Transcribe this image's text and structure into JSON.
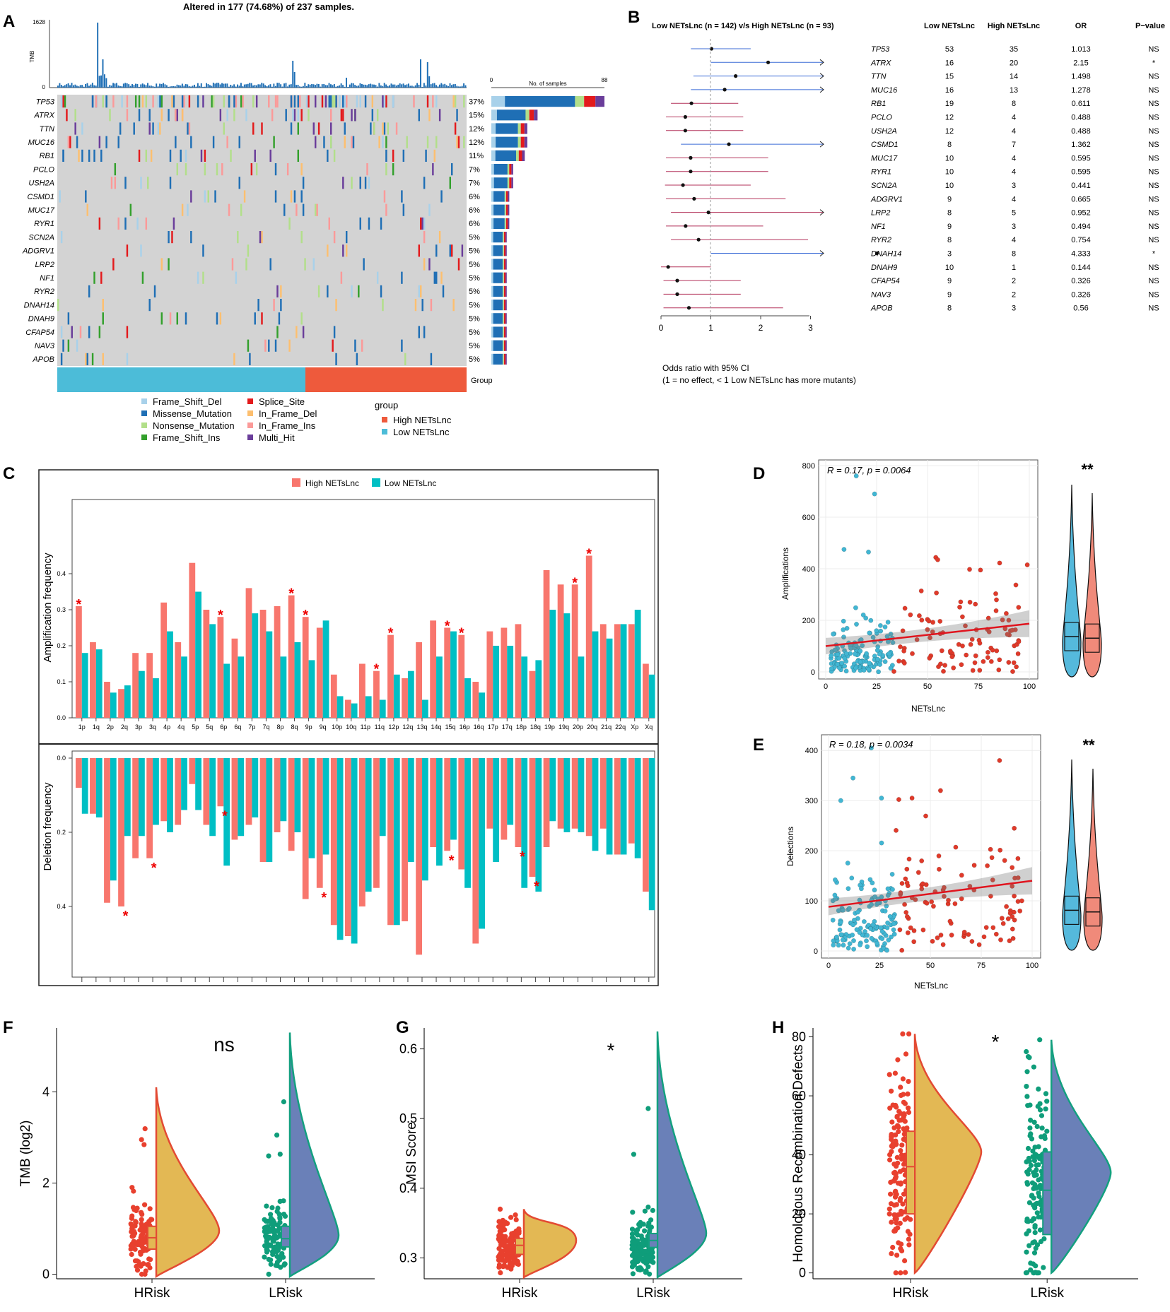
{
  "panel_letters": [
    "A",
    "B",
    "C",
    "D",
    "E",
    "F",
    "G",
    "H"
  ],
  "colors": {
    "high": "#ee5a4f",
    "low": "#2bbcc9",
    "high_bar": "#f8766d",
    "low_bar": "#00bfc4",
    "hrisk_dot": "#e8402e",
    "lrisk_dot": "#0f9d7a",
    "hrisk_fill": "#e3b854",
    "lrisk_fill": "#6a80b8",
    "missense": "#1f6fb5",
    "frame_shift_del": "#a8d1ea",
    "nonsense": "#b2df8a",
    "frame_shift_ins": "#33a02c",
    "splice": "#e31a1c",
    "in_frame_del": "#fdbf6f",
    "in_frame_ins": "#fb9a99",
    "multi_hit": "#6a3d9a",
    "grey": "#d3d3d3"
  },
  "panelA": {
    "title": "Altered in 177 (74.68%) of 237 samples.",
    "tmb_label": "TMB",
    "tmb_max": "1628",
    "tmb_min": "0",
    "samples_axis": {
      "label": "No. of samples",
      "min": "0",
      "max": "88"
    },
    "group_label": "Group",
    "genes": [
      "TP53",
      "ATRX",
      "TTN",
      "MUC16",
      "RB1",
      "PCLO",
      "USH2A",
      "CSMD1",
      "MUC17",
      "RYR1",
      "SCN2A",
      "ADGRV1",
      "LRP2",
      "NF1",
      "RYR2",
      "DNAH14",
      "DNAH9",
      "CFAP54",
      "NAV3",
      "APOB"
    ],
    "percents": [
      "37%",
      "15%",
      "12%",
      "12%",
      "11%",
      "7%",
      "7%",
      "6%",
      "6%",
      "6%",
      "5%",
      "5%",
      "5%",
      "5%",
      "5%",
      "5%",
      "5%",
      "5%",
      "5%",
      "5%"
    ],
    "counts": [
      88,
      36,
      28,
      28,
      26,
      17,
      17,
      14,
      14,
      14,
      12,
      12,
      12,
      12,
      12,
      12,
      12,
      12,
      12,
      12
    ],
    "legend": [
      "Frame_Shift_Del",
      "Missense_Mutation",
      "Nonsense_Mutation",
      "Frame_Shift_Ins",
      "Splice_Site",
      "In_Frame_Del",
      "In_Frame_Ins",
      "Multi_Hit"
    ],
    "group_legend_title": "group",
    "group_legend": [
      "High NETsLnc",
      "Low NETsLnc"
    ]
  },
  "panelB": {
    "title": "Low NETsLnc (n = 142) v/s High NETsLnc (n = 93)",
    "headers": [
      "Low NETsLnc",
      "High NETsLnc",
      "OR",
      "P−value"
    ],
    "rows": [
      {
        "gene": "TP53",
        "low": "53",
        "high": "35",
        "or": "1.013",
        "p": "NS"
      },
      {
        "gene": "ATRX",
        "low": "16",
        "high": "20",
        "or": "2.15",
        "p": "*"
      },
      {
        "gene": "TTN",
        "low": "15",
        "high": "14",
        "or": "1.498",
        "p": "NS"
      },
      {
        "gene": "MUC16",
        "low": "16",
        "high": "13",
        "or": "1.278",
        "p": "NS"
      },
      {
        "gene": "RB1",
        "low": "19",
        "high": "8",
        "or": "0.611",
        "p": "NS"
      },
      {
        "gene": "PCLO",
        "low": "12",
        "high": "4",
        "or": "0.488",
        "p": "NS"
      },
      {
        "gene": "USH2A",
        "low": "12",
        "high": "4",
        "or": "0.488",
        "p": "NS"
      },
      {
        "gene": "CSMD1",
        "low": "8",
        "high": "7",
        "or": "1.362",
        "p": "NS"
      },
      {
        "gene": "MUC17",
        "low": "10",
        "high": "4",
        "or": "0.595",
        "p": "NS"
      },
      {
        "gene": "RYR1",
        "low": "10",
        "high": "4",
        "or": "0.595",
        "p": "NS"
      },
      {
        "gene": "SCN2A",
        "low": "10",
        "high": "3",
        "or": "0.441",
        "p": "NS"
      },
      {
        "gene": "ADGRV1",
        "low": "9",
        "high": "4",
        "or": "0.665",
        "p": "NS"
      },
      {
        "gene": "LRP2",
        "low": "8",
        "high": "5",
        "or": "0.952",
        "p": "NS"
      },
      {
        "gene": "NF1",
        "low": "9",
        "high": "3",
        "or": "0.494",
        "p": "NS"
      },
      {
        "gene": "RYR2",
        "low": "8",
        "high": "4",
        "or": "0.754",
        "p": "NS"
      },
      {
        "gene": "DNAH14",
        "low": "3",
        "high": "8",
        "or": "4.333",
        "p": "*"
      },
      {
        "gene": "DNAH9",
        "low": "10",
        "high": "1",
        "or": "0.144",
        "p": "NS"
      },
      {
        "gene": "CFAP54",
        "low": "9",
        "high": "2",
        "or": "0.326",
        "p": "NS"
      },
      {
        "gene": "NAV3",
        "low": "9",
        "high": "2",
        "or": "0.326",
        "p": "NS"
      },
      {
        "gene": "APOB",
        "low": "8",
        "high": "3",
        "or": "0.56",
        "p": "NS"
      }
    ],
    "ci": [
      [
        0.6,
        1.8
      ],
      [
        1.0,
        3.3
      ],
      [
        0.65,
        3.3
      ],
      [
        0.6,
        3.3
      ],
      [
        0.2,
        1.55
      ],
      [
        0.1,
        1.65
      ],
      [
        0.1,
        1.65
      ],
      [
        0.4,
        3.3
      ],
      [
        0.1,
        2.15
      ],
      [
        0.1,
        2.15
      ],
      [
        0.08,
        1.8
      ],
      [
        0.1,
        2.5
      ],
      [
        0.2,
        3.3
      ],
      [
        0.1,
        2.05
      ],
      [
        0.2,
        2.95
      ],
      [
        1.0,
        3.3
      ],
      [
        0.0,
        1.0
      ],
      [
        0.05,
        1.6
      ],
      [
        0.05,
        1.6
      ],
      [
        0.05,
        2.45
      ]
    ],
    "xticks": [
      "0",
      "1",
      "2",
      "3"
    ],
    "footnote1": "Odds ratio with 95% CI",
    "footnote2": "(1 = no effect, < 1 Low NETsLnc has more mutants)"
  },
  "chart_data": [
    {
      "id": "C",
      "type": "bar",
      "legend": [
        "High NETsLnc",
        "Low NETsLnc"
      ],
      "ylabel_top": "Amplification frequency",
      "ylabel_bottom": "Deletion frequency",
      "yticks_top": [
        "0.0",
        "0.1",
        "0.2",
        "0.3",
        "0.4"
      ],
      "yticks_bottom": [
        "0.0",
        "0.2",
        "0.4"
      ],
      "categories": [
        "1p",
        "1q",
        "2p",
        "2q",
        "3p",
        "3q",
        "4p",
        "4q",
        "5p",
        "5q",
        "6p",
        "6q",
        "7p",
        "7q",
        "8p",
        "8q",
        "9p",
        "9q",
        "10p",
        "10q",
        "11p",
        "11q",
        "12p",
        "12q",
        "13q",
        "14q",
        "15q",
        "16p",
        "16q",
        "17p",
        "17q",
        "18p",
        "18q",
        "19p",
        "19q",
        "20p",
        "20q",
        "21q",
        "22q",
        "Xp",
        "Xq"
      ],
      "amp_high": [
        0.31,
        0.21,
        0.1,
        0.08,
        0.18,
        0.18,
        0.32,
        0.21,
        0.43,
        0.3,
        0.28,
        0.22,
        0.36,
        0.3,
        0.31,
        0.34,
        0.28,
        0.25,
        0.12,
        0.05,
        0.15,
        0.13,
        0.23,
        0.11,
        0.21,
        0.27,
        0.25,
        0.23,
        0.1,
        0.24,
        0.25,
        0.26,
        0.13,
        0.41,
        0.37,
        0.37,
        0.45,
        0.26,
        0.26,
        0.26,
        0.15
      ],
      "amp_low": [
        0.18,
        0.19,
        0.07,
        0.09,
        0.13,
        0.11,
        0.24,
        0.17,
        0.35,
        0.26,
        0.15,
        0.17,
        0.29,
        0.24,
        0.17,
        0.21,
        0.16,
        0.27,
        0.06,
        0.04,
        0.06,
        0.05,
        0.12,
        0.13,
        0.05,
        0.17,
        0.24,
        0.11,
        0.07,
        0.2,
        0.2,
        0.17,
        0.16,
        0.3,
        0.29,
        0.17,
        0.24,
        0.22,
        0.26,
        0.3,
        0.12
      ],
      "del_high": [
        0.08,
        0.15,
        0.39,
        0.4,
        0.27,
        0.27,
        0.17,
        0.18,
        0.07,
        0.18,
        0.13,
        0.22,
        0.18,
        0.28,
        0.2,
        0.25,
        0.38,
        0.35,
        0.45,
        0.48,
        0.4,
        0.35,
        0.45,
        0.44,
        0.53,
        0.24,
        0.25,
        0.3,
        0.5,
        0.19,
        0.22,
        0.24,
        0.32,
        0.24,
        0.19,
        0.19,
        0.21,
        0.19,
        0.26,
        0.23,
        0.36
      ],
      "del_low": [
        0.15,
        0.16,
        0.33,
        0.21,
        0.21,
        0.18,
        0.2,
        0.14,
        0.14,
        0.21,
        0.29,
        0.21,
        0.16,
        0.28,
        0.17,
        0.2,
        0.27,
        0.26,
        0.49,
        0.5,
        0.36,
        0.21,
        0.45,
        0.28,
        0.33,
        0.29,
        0.22,
        0.35,
        0.46,
        0.28,
        0.18,
        0.35,
        0.36,
        0.17,
        0.2,
        0.2,
        0.25,
        0.26,
        0.26,
        0.27,
        0.41
      ],
      "amp_star_indices": [
        0,
        10,
        15,
        16,
        21,
        22,
        26,
        27,
        35,
        36
      ],
      "del_star_indices": [
        3,
        5,
        10,
        17,
        26,
        31,
        32
      ]
    },
    {
      "id": "D",
      "type": "scatter",
      "title": "R = 0.17, p = 0.0064",
      "xlabel": "NETsLnc",
      "ylabel": "Amplifications",
      "xlim": [
        0,
        100
      ],
      "ylim": [
        0,
        800
      ],
      "xticks": [
        "0",
        "25",
        "50",
        "75",
        "100"
      ],
      "yticks": [
        "0",
        "200",
        "400",
        "600",
        "800"
      ],
      "fit": [
        [
          0,
          100
        ],
        [
          100,
          187
        ]
      ],
      "violin_sig": "**"
    },
    {
      "id": "E",
      "type": "scatter",
      "title": "R = 0.18, p = 0.0034",
      "xlabel": "NETsLnc",
      "ylabel": "Delections",
      "xlim": [
        0,
        100
      ],
      "ylim": [
        0,
        420
      ],
      "xticks": [
        "0",
        "25",
        "50",
        "75",
        "100"
      ],
      "yticks": [
        "0",
        "100",
        "200",
        "300",
        "400"
      ],
      "fit": [
        [
          0,
          88
        ],
        [
          100,
          140
        ]
      ],
      "violin_sig": "**"
    },
    {
      "id": "F",
      "type": "raincloud",
      "ylabel": "TMB (log2)",
      "categories": [
        "HRisk",
        "LRisk"
      ],
      "ylim": [
        -0.1,
        5.4
      ],
      "yticks": [
        "0",
        "2",
        "4"
      ],
      "sig": "ns",
      "box_h": [
        0.55,
        0.8,
        1.05
      ],
      "box_l": [
        0.6,
        0.78,
        1.05
      ]
    },
    {
      "id": "G",
      "type": "raincloud",
      "ylabel": "MSI Score",
      "categories": [
        "HRisk",
        "LRisk"
      ],
      "ylim": [
        0.27,
        0.63
      ],
      "yticks": [
        "0.3",
        "0.4",
        "0.5",
        "0.6"
      ],
      "sig": "*",
      "box_h": [
        0.305,
        0.318,
        0.328
      ],
      "box_l": [
        0.315,
        0.325,
        0.335
      ]
    },
    {
      "id": "H",
      "type": "raincloud",
      "ylabel": "Homologous Recombination Defects",
      "categories": [
        "HRisk",
        "LRisk"
      ],
      "ylim": [
        -2,
        83
      ],
      "yticks": [
        "0",
        "20",
        "40",
        "60",
        "80"
      ],
      "sig": "*",
      "box_h": [
        20,
        36,
        48
      ],
      "box_l": [
        13,
        28,
        41
      ]
    }
  ]
}
